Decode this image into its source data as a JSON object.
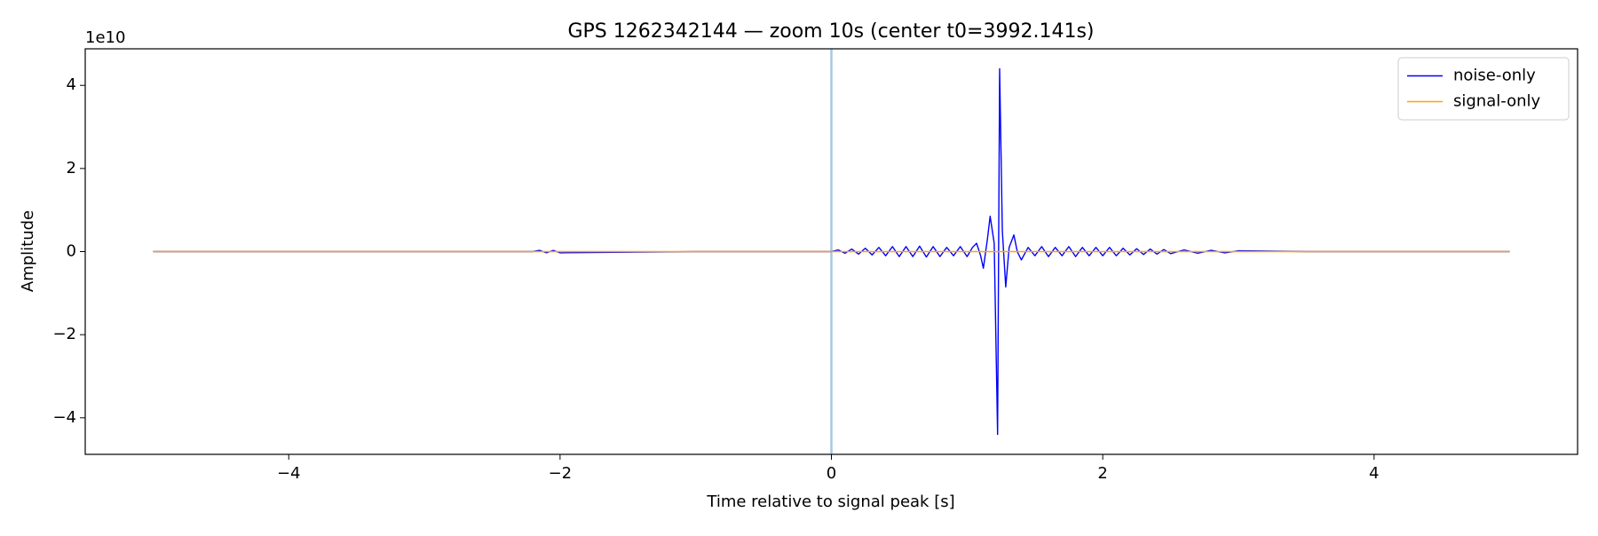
{
  "chart_data": {
    "type": "line",
    "title": "GPS 1262342144 — zoom 10s (center t0=3992.141s)",
    "xlabel": "Time relative to signal peak [s]",
    "ylabel": "Amplitude",
    "y_offset_label": "1e10",
    "xlim": [
      -5.5,
      5.5
    ],
    "ylim": [
      -4.88,
      4.88
    ],
    "xticks": [
      {
        "value": -4,
        "label": "−4"
      },
      {
        "value": -2,
        "label": "−2"
      },
      0,
      2,
      4
    ],
    "yticks": [
      {
        "value": -4,
        "label": "−4"
      },
      {
        "value": -2,
        "label": "−2"
      },
      0,
      2,
      4
    ],
    "grid": false,
    "legend": "upper right",
    "vline": {
      "x": 0,
      "color": "#a6c8e0"
    },
    "series": [
      {
        "name": "noise-only",
        "color": "#0000ff",
        "x": [
          -5,
          -4,
          -3,
          -2.2,
          -2.15,
          -2.1,
          -2.05,
          -2,
          -1,
          -0.5,
          0,
          0.05,
          0.1,
          0.15,
          0.2,
          0.25,
          0.3,
          0.35,
          0.4,
          0.45,
          0.5,
          0.55,
          0.6,
          0.65,
          0.7,
          0.75,
          0.8,
          0.85,
          0.9,
          0.95,
          1.0,
          1.04,
          1.07,
          1.1,
          1.12,
          1.15,
          1.17,
          1.2,
          1.225,
          1.24,
          1.26,
          1.285,
          1.31,
          1.345,
          1.37,
          1.4,
          1.45,
          1.5,
          1.55,
          1.6,
          1.65,
          1.7,
          1.75,
          1.8,
          1.85,
          1.9,
          1.95,
          2.0,
          2.05,
          2.1,
          2.15,
          2.2,
          2.25,
          2.3,
          2.35,
          2.4,
          2.45,
          2.5,
          2.6,
          2.7,
          2.8,
          2.9,
          3.0,
          3.5,
          4,
          4.5,
          5
        ],
        "values": [
          0,
          0,
          0,
          0,
          0.03,
          -0.03,
          0.03,
          -0.03,
          0,
          0,
          0,
          0.04,
          -0.04,
          0.06,
          -0.06,
          0.08,
          -0.08,
          0.1,
          -0.1,
          0.12,
          -0.12,
          0.12,
          -0.12,
          0.13,
          -0.13,
          0.12,
          -0.12,
          0.1,
          -0.1,
          0.12,
          -0.12,
          0.1,
          0.2,
          -0.1,
          -0.4,
          0.3,
          0.85,
          0.2,
          -4.4,
          4.4,
          0.5,
          -0.85,
          0.1,
          0.4,
          0,
          -0.2,
          0.1,
          -0.1,
          0.12,
          -0.12,
          0.1,
          -0.1,
          0.12,
          -0.12,
          0.1,
          -0.1,
          0.1,
          -0.1,
          0.1,
          -0.1,
          0.08,
          -0.08,
          0.07,
          -0.07,
          0.06,
          -0.06,
          0.05,
          -0.05,
          0.04,
          -0.04,
          0.03,
          -0.03,
          0.02,
          0,
          0,
          0,
          0
        ]
      },
      {
        "name": "signal-only",
        "color": "#ffa500",
        "x": [
          -5,
          5
        ],
        "values": [
          0,
          0
        ]
      }
    ]
  }
}
